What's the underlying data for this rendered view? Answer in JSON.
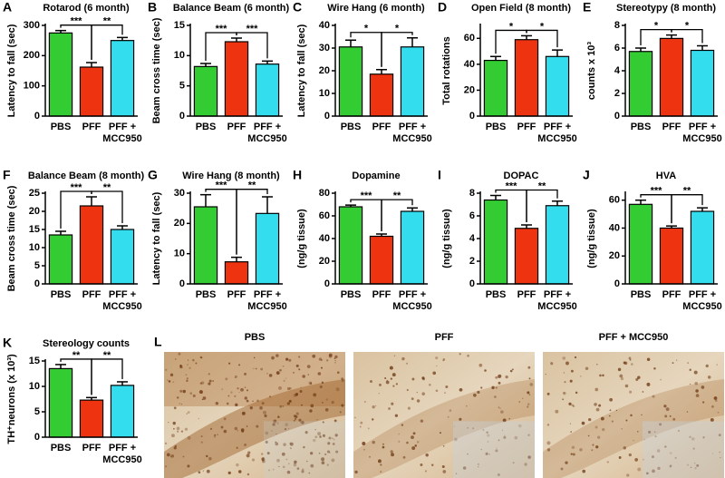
{
  "chart_data": [
    {
      "type": "bar",
      "panel": "A",
      "title": "Rotarod (6 month)",
      "ylabel": "Latency to fall (sec)",
      "categories": [
        "PBS",
        "PFF",
        [
          "PFF +",
          "MCC950"
        ]
      ],
      "values": [
        275,
        162,
        250
      ],
      "errors": [
        8,
        15,
        10
      ],
      "colors": [
        "#33cc33",
        "#ee3311",
        "#33ddee"
      ],
      "ylim": [
        0,
        300
      ],
      "yticks": [
        0,
        100,
        200,
        300
      ],
      "comparisons": [
        "***",
        "**"
      ]
    },
    {
      "type": "bar",
      "panel": "B",
      "title": "Balance Beam (6 month)",
      "ylabel": "Beam cross time (sec)",
      "categories": [
        "PBS",
        "PFF",
        [
          "PFF +",
          "MCC950"
        ]
      ],
      "values": [
        8.2,
        12.3,
        8.6
      ],
      "errors": [
        0.5,
        0.6,
        0.5
      ],
      "colors": [
        "#33cc33",
        "#ee3311",
        "#33ddee"
      ],
      "ylim": [
        0,
        15
      ],
      "yticks": [
        0,
        5,
        10,
        15
      ],
      "comparisons": [
        "***",
        "***"
      ]
    },
    {
      "type": "bar",
      "panel": "C",
      "title": "Wire Hang (6 month)",
      "ylabel": "Latency to fall (sec)",
      "categories": [
        "PBS",
        "PFF",
        [
          "PFF +",
          "MCC950"
        ]
      ],
      "values": [
        30.5,
        18.5,
        30.5
      ],
      "errors": [
        3,
        2,
        4
      ],
      "colors": [
        "#33cc33",
        "#ee3311",
        "#33ddee"
      ],
      "ylim": [
        0,
        40
      ],
      "yticks": [
        0,
        10,
        20,
        30,
        40
      ],
      "comparisons": [
        "*",
        "*"
      ]
    },
    {
      "type": "bar",
      "panel": "D",
      "title": "Open Field (8 month)",
      "ylabel": "Total rotations",
      "categories": [
        "PBS",
        "PFF",
        [
          "PFF +",
          "MCC950"
        ]
      ],
      "values": [
        43,
        59,
        46
      ],
      "errors": [
        3,
        3,
        5
      ],
      "colors": [
        "#33cc33",
        "#ee3311",
        "#33ddee"
      ],
      "ylim": [
        0,
        70
      ],
      "yticks": [
        0,
        20,
        40,
        60
      ],
      "comparisons": [
        "*",
        "*"
      ]
    },
    {
      "type": "bar",
      "panel": "E",
      "title": "Stereotypy (8 month)",
      "ylabel": "counts x 10³",
      "categories": [
        "PBS",
        "PFF",
        [
          "PFF +",
          "MCC950"
        ]
      ],
      "values": [
        5.7,
        6.85,
        5.8
      ],
      "errors": [
        0.3,
        0.3,
        0.4
      ],
      "colors": [
        "#33cc33",
        "#ee3311",
        "#33ddee"
      ],
      "ylim": [
        0,
        8
      ],
      "yticks": [
        0,
        2,
        4,
        6,
        8
      ],
      "comparisons": [
        "*",
        "*"
      ]
    },
    {
      "type": "bar",
      "panel": "F",
      "title": "Balance Beam (8 month)",
      "ylabel": "Beam cross time (sec)",
      "categories": [
        "PBS",
        "PFF",
        [
          "PFF +",
          "MCC950"
        ]
      ],
      "values": [
        13.5,
        21.5,
        15
      ],
      "errors": [
        1,
        2.5,
        1
      ],
      "colors": [
        "#33cc33",
        "#ee3311",
        "#33ddee"
      ],
      "ylim": [
        0,
        25
      ],
      "yticks": [
        0,
        5,
        10,
        15,
        20,
        25
      ],
      "comparisons": [
        "***",
        "**"
      ]
    },
    {
      "type": "bar",
      "panel": "G",
      "title": "Wire Hang (8 month)",
      "ylabel": "Latency to fall (sec)",
      "categories": [
        "PBS",
        "PFF",
        [
          "PFF +",
          "MCC950"
        ]
      ],
      "values": [
        25.5,
        7.3,
        23.3
      ],
      "errors": [
        4,
        1.5,
        5.5
      ],
      "colors": [
        "#33cc33",
        "#ee3311",
        "#33ddee"
      ],
      "ylim": [
        0,
        30
      ],
      "yticks": [
        0,
        10,
        20,
        30
      ],
      "comparisons": [
        "***",
        "**"
      ]
    },
    {
      "type": "bar",
      "panel": "H",
      "title": "Dopamine",
      "ylabel": "(ng/g tissue)",
      "categories": [
        "PBS",
        "PFF",
        [
          "PFF +",
          "MCC950"
        ]
      ],
      "values": [
        68,
        42,
        64
      ],
      "errors": [
        1.5,
        2,
        3
      ],
      "colors": [
        "#33cc33",
        "#ee3311",
        "#33ddee"
      ],
      "ylim": [
        0,
        80
      ],
      "yticks": [
        0,
        20,
        40,
        60,
        80
      ],
      "comparisons": [
        "***",
        "**"
      ]
    },
    {
      "type": "bar",
      "panel": "I",
      "title": "DOPAC",
      "ylabel": "(ng/g tissue)",
      "categories": [
        "PBS",
        "PFF",
        [
          "PFF +",
          "MCC950"
        ]
      ],
      "values": [
        7.4,
        4.9,
        6.9
      ],
      "errors": [
        0.4,
        0.3,
        0.4
      ],
      "colors": [
        "#33cc33",
        "#ee3311",
        "#33ddee"
      ],
      "ylim": [
        0,
        8
      ],
      "yticks": [
        0,
        2,
        4,
        6,
        8
      ],
      "comparisons": [
        "***",
        "**"
      ]
    },
    {
      "type": "bar",
      "panel": "J",
      "title": "HVA",
      "ylabel": "(ng/g tissue)",
      "categories": [
        "PBS",
        "PFF",
        [
          "PFF +",
          "MCC950"
        ]
      ],
      "values": [
        57,
        40,
        52
      ],
      "errors": [
        3,
        1.5,
        2.5
      ],
      "colors": [
        "#33cc33",
        "#ee3311",
        "#33ddee"
      ],
      "ylim": [
        0,
        65
      ],
      "yticks": [
        0,
        20,
        40,
        60
      ],
      "comparisons": [
        "***",
        "**"
      ]
    },
    {
      "type": "bar",
      "panel": "K",
      "title": "Stereology counts",
      "ylabel": "TH⁺neurons (x 10³)",
      "categories": [
        "PBS",
        "PFF",
        [
          "PFF +",
          "MCC950"
        ]
      ],
      "values": [
        13.5,
        7.3,
        10.2
      ],
      "errors": [
        0.8,
        0.5,
        0.7
      ],
      "colors": [
        "#33cc33",
        "#ee3311",
        "#33ddee"
      ],
      "ylim": [
        0,
        15
      ],
      "yticks": [
        0,
        5,
        10,
        15
      ],
      "comparisons": [
        "**",
        "**"
      ]
    }
  ],
  "micrographs": {
    "panel": "L",
    "labels": [
      "PBS",
      "PFF",
      "PFF + MCC950"
    ]
  }
}
